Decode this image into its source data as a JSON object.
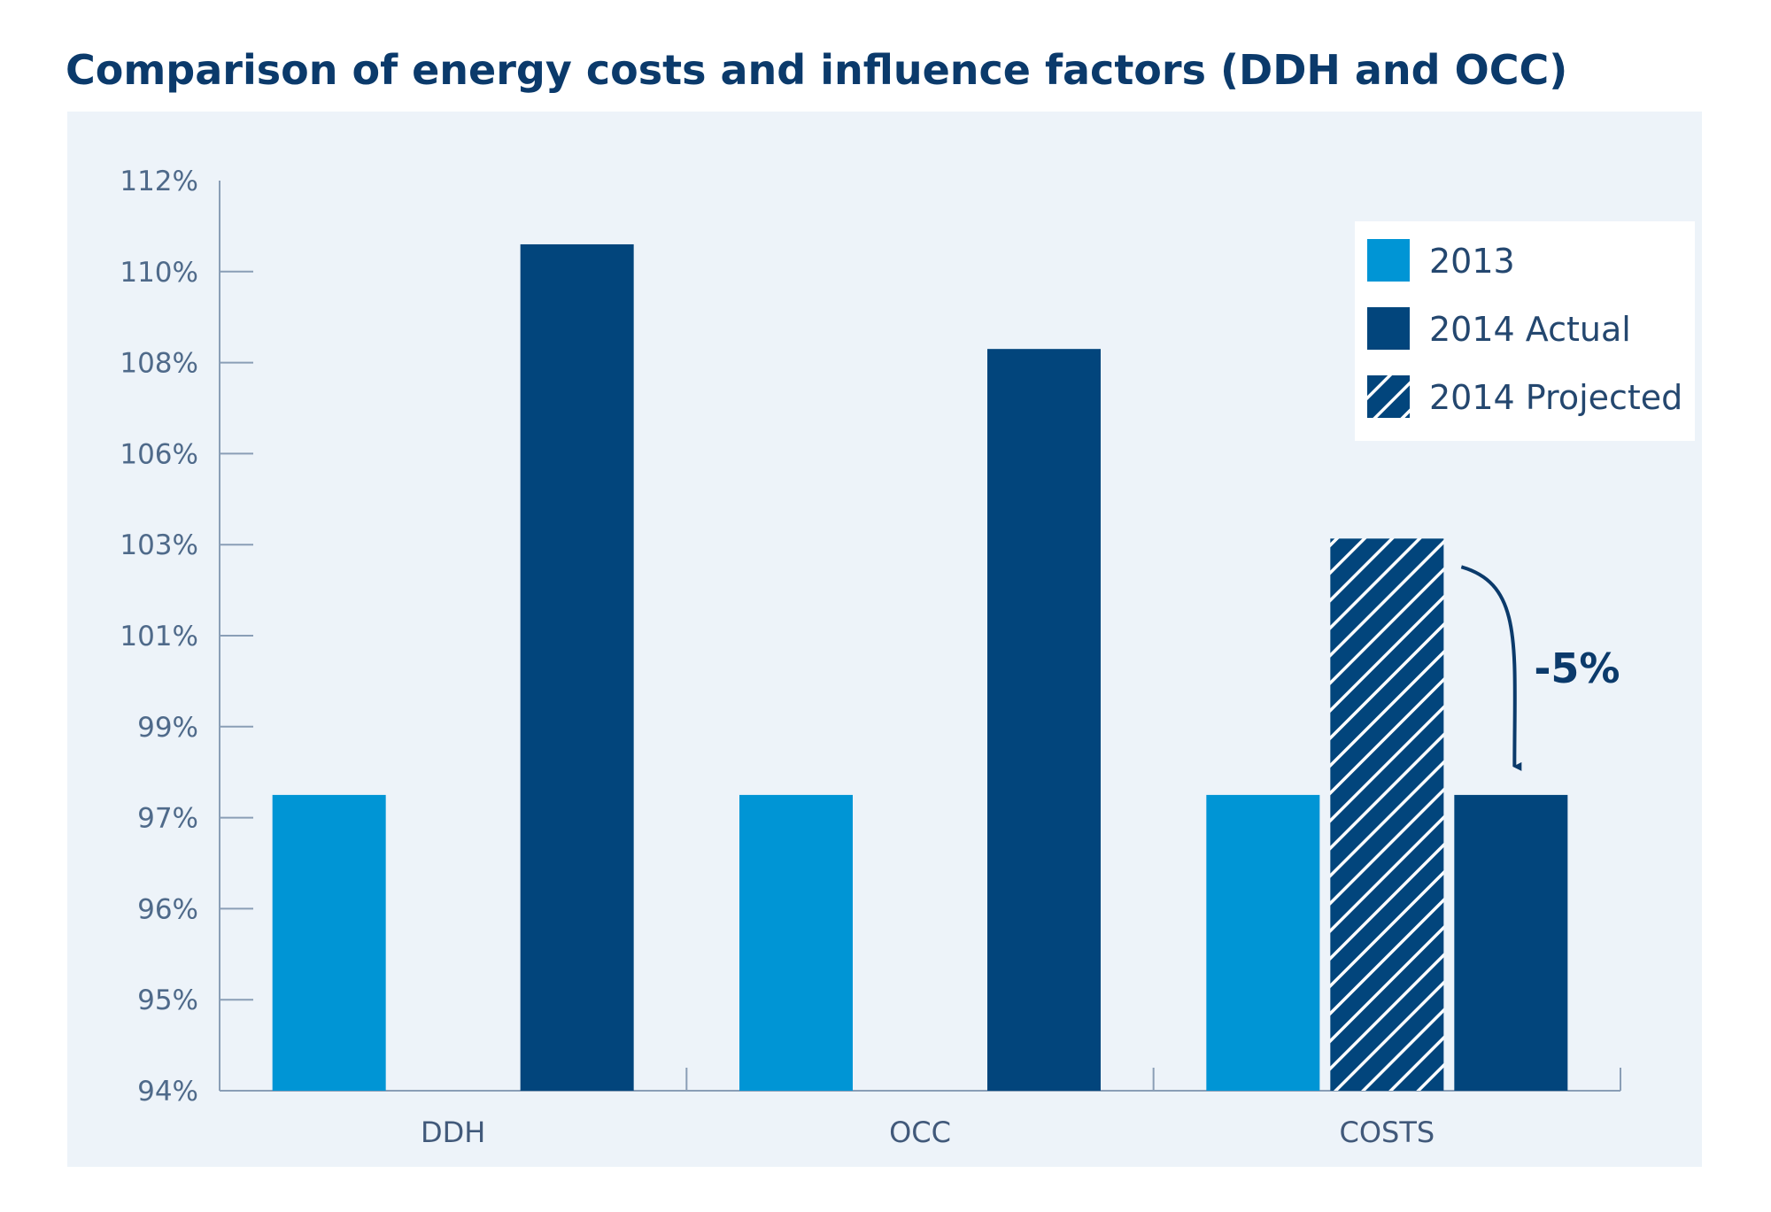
{
  "colors": {
    "panel_bg": "#edf3f9",
    "axis": "#8a9eb6",
    "light_blue": "#0095d5",
    "dark_blue": "#02457c",
    "legend_bg": "#ffffff"
  },
  "chart_data": {
    "type": "bar",
    "title": "Comparison of energy costs and influence factors (DDH and OCC)",
    "xlabel": "",
    "ylabel": "",
    "categories": [
      "DDH",
      "OCC",
      "COSTS"
    ],
    "y_ticks": [
      "94%",
      "95%",
      "96%",
      "97%",
      "99%",
      "101%",
      "103%",
      "106%",
      "108%",
      "110%",
      "112%"
    ],
    "grid": false,
    "legend_position": "top-right",
    "series": [
      {
        "name": "2013",
        "color": "#0095d5",
        "pattern": "solid",
        "values": [
          "97.5%",
          "97.5%",
          "97.5%"
        ]
      },
      {
        "name": "2014 Projected",
        "color": "#02457c",
        "pattern": "hatched",
        "values": [
          null,
          null,
          "103.2%"
        ]
      },
      {
        "name": "2014 Actual",
        "color": "#02457c",
        "pattern": "solid",
        "values": [
          "110.6%",
          "108.3%",
          "97.5%"
        ]
      }
    ],
    "annotations": [
      {
        "text": "-5%",
        "from_series": "2014 Projected",
        "to_series": "2014 Actual",
        "category": "COSTS",
        "marker": "curved-down-arrow"
      }
    ]
  }
}
